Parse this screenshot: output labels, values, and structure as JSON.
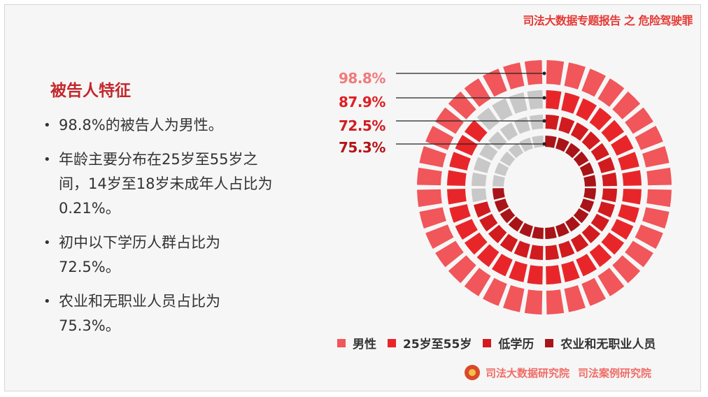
{
  "header": {
    "title": "司法大数据专题报告 之 危险驾驶罪"
  },
  "panel": {
    "title": "被告人特征",
    "bullets": [
      "98.8%的被告人为男性。",
      "年龄主要分布在25岁至55岁之间，14岁至18岁未成年人占比为0.21%。",
      "初中以下学历人群占比为72.5%。",
      "农业和无职业人员占比为75.3%。"
    ]
  },
  "chart_data": {
    "type": "radial-bar",
    "series": [
      {
        "name": "男性",
        "value": 98.8,
        "label": "98.8%",
        "color": "#f0565a",
        "label_color": "#f07a7c"
      },
      {
        "name": "25岁至55岁",
        "value": 87.9,
        "label": "87.9%",
        "color": "#e8262a",
        "label_color": "#e01f24"
      },
      {
        "name": "低学历",
        "value": 72.5,
        "label": "72.5%",
        "color": "#d11b1f",
        "label_color": "#d01d22"
      },
      {
        "name": "农业和无职业人员",
        "value": 75.3,
        "label": "75.3%",
        "color": "#a81417",
        "label_color": "#b31519"
      }
    ],
    "max": 100,
    "track_color": "#c8c8c8"
  },
  "legend": [
    "男性",
    "25岁至55岁",
    "低学历",
    "农业和无职业人员"
  ],
  "footer": {
    "org1": "司法大数据研究院",
    "org2": "司法案例研究院"
  }
}
